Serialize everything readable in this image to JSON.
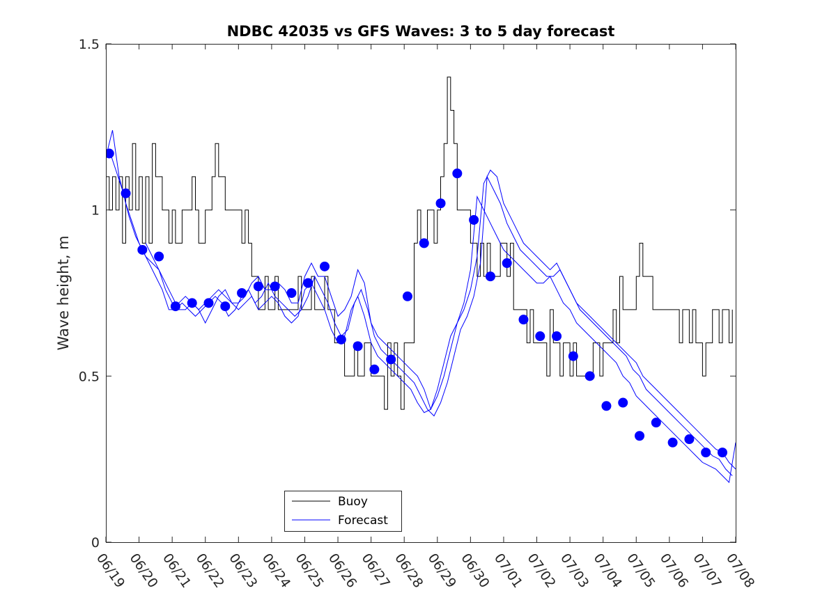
{
  "chart_data": {
    "type": "line",
    "title": "NDBC 42035 vs GFS Waves: 3 to 5 day forecast",
    "xlabel": "",
    "ylabel": "Wave height, m",
    "xlim": [
      0,
      19
    ],
    "ylim": [
      0,
      1.5
    ],
    "x_tick_labels": [
      "06/19",
      "06/20",
      "06/21",
      "06/22",
      "06/23",
      "06/24",
      "06/25",
      "06/26",
      "06/27",
      "06/28",
      "06/29",
      "06/30",
      "07/01",
      "07/02",
      "07/03",
      "07/04",
      "07/05",
      "07/06",
      "07/07",
      "07/08"
    ],
    "y_ticks": [
      0,
      0.5,
      1,
      1.5
    ],
    "y_tick_labels": [
      "0",
      "0.5",
      "1",
      "1.5"
    ],
    "grid": false,
    "legend_position": "bottom-center",
    "colors": {
      "buoy": "#000000",
      "forecast": "#0000ff",
      "axes": "#262626"
    },
    "legend": [
      {
        "label": "Buoy",
        "color": "#000000"
      },
      {
        "label": "Forecast",
        "color": "#0000ff"
      }
    ],
    "series": [
      {
        "name": "Buoy",
        "x": [
          0.0,
          0.1,
          0.2,
          0.3,
          0.4,
          0.5,
          0.6,
          0.7,
          0.8,
          0.9,
          1.0,
          1.1,
          1.2,
          1.3,
          1.4,
          1.5,
          1.6,
          1.7,
          1.8,
          1.9,
          2.0,
          2.1,
          2.2,
          2.3,
          2.4,
          2.5,
          2.6,
          2.7,
          2.8,
          2.9,
          3.0,
          3.1,
          3.2,
          3.3,
          3.4,
          3.5,
          3.6,
          3.7,
          3.8,
          3.9,
          4.0,
          4.1,
          4.2,
          4.3,
          4.4,
          4.5,
          4.6,
          4.7,
          4.8,
          4.9,
          5.0,
          5.1,
          5.2,
          5.3,
          5.4,
          5.5,
          5.6,
          5.7,
          5.8,
          5.9,
          6.0,
          6.1,
          6.2,
          6.3,
          6.4,
          6.5,
          6.6,
          6.7,
          6.8,
          6.9,
          7.0,
          7.1,
          7.2,
          7.3,
          7.4,
          7.5,
          7.6,
          7.7,
          7.8,
          7.9,
          8.0,
          8.1,
          8.2,
          8.3,
          8.4,
          8.5,
          8.6,
          8.7,
          8.8,
          8.9,
          9.0,
          9.1,
          9.2,
          9.3,
          9.4,
          9.5,
          9.6,
          9.7,
          9.8,
          9.9,
          10.0,
          10.1,
          10.2,
          10.3,
          10.4,
          10.5,
          10.6,
          10.7,
          10.8,
          10.9,
          11.0,
          11.1,
          11.2,
          11.3,
          11.4,
          11.5,
          11.6,
          11.7,
          11.8,
          11.9,
          12.0,
          12.1,
          12.2,
          12.3,
          12.4,
          12.5,
          12.6,
          12.7,
          12.8,
          12.9,
          13.0,
          13.1,
          13.2,
          13.3,
          13.4,
          13.5,
          13.6,
          13.7,
          13.8,
          13.9,
          14.0,
          14.1,
          14.2,
          14.3,
          14.4,
          14.5,
          14.6,
          14.7,
          14.8,
          14.9,
          15.0,
          15.1,
          15.2,
          15.3,
          15.4,
          15.5,
          15.6,
          15.7,
          15.8,
          15.9,
          16.0,
          16.1,
          16.2,
          16.3,
          16.4,
          16.5,
          16.6,
          16.7,
          16.8,
          16.9,
          17.0,
          17.1,
          17.2,
          17.3,
          17.4,
          17.5,
          17.6,
          17.7,
          17.8,
          17.9,
          18.0,
          18.1,
          18.2,
          18.3,
          18.4,
          18.5,
          18.6,
          18.7,
          18.8,
          18.9
        ],
        "values": [
          1.1,
          1.0,
          1.1,
          1.0,
          1.1,
          0.9,
          1.1,
          1.0,
          1.2,
          1.0,
          1.1,
          0.9,
          1.1,
          0.9,
          1.2,
          1.1,
          1.1,
          1.0,
          1.0,
          0.9,
          1.0,
          0.9,
          0.9,
          1.0,
          1.0,
          1.0,
          1.1,
          1.0,
          0.9,
          0.9,
          1.0,
          1.0,
          1.1,
          1.2,
          1.1,
          1.1,
          1.0,
          1.0,
          1.0,
          1.0,
          1.0,
          0.9,
          1.0,
          0.9,
          0.8,
          0.8,
          0.7,
          0.7,
          0.8,
          0.7,
          0.7,
          0.8,
          0.7,
          0.7,
          0.7,
          0.7,
          0.7,
          0.7,
          0.8,
          0.7,
          0.7,
          0.7,
          0.8,
          0.7,
          0.7,
          0.7,
          0.8,
          0.7,
          0.7,
          0.6,
          0.6,
          0.6,
          0.5,
          0.5,
          0.5,
          0.6,
          0.5,
          0.5,
          0.6,
          0.6,
          0.5,
          0.5,
          0.5,
          0.5,
          0.4,
          0.6,
          0.5,
          0.6,
          0.5,
          0.4,
          0.6,
          0.6,
          0.6,
          0.9,
          1.0,
          0.9,
          0.9,
          1.0,
          1.0,
          0.9,
          1.0,
          1.1,
          1.2,
          1.4,
          1.3,
          1.2,
          1.0,
          1.0,
          1.0,
          1.0,
          0.9,
          0.9,
          0.8,
          0.9,
          0.8,
          0.9,
          0.8,
          0.8,
          0.8,
          0.9,
          0.9,
          0.8,
          0.9,
          0.7,
          0.7,
          0.7,
          0.7,
          0.6,
          0.7,
          0.6,
          0.6,
          0.6,
          0.6,
          0.5,
          0.7,
          0.6,
          0.6,
          0.5,
          0.6,
          0.6,
          0.5,
          0.6,
          0.5,
          0.5,
          0.5,
          0.5,
          0.5,
          0.6,
          0.6,
          0.5,
          0.6,
          0.6,
          0.6,
          0.7,
          0.6,
          0.8,
          0.7,
          0.7,
          0.7,
          0.7,
          0.8,
          0.9,
          0.8,
          0.8,
          0.8,
          0.7,
          0.7,
          0.7,
          0.7,
          0.7,
          0.7,
          0.7,
          0.7,
          0.6,
          0.7,
          0.7,
          0.6,
          0.7,
          0.6,
          0.6,
          0.5,
          0.6,
          0.6,
          0.7,
          0.7,
          0.6,
          0.7,
          0.7,
          0.6,
          0.7
        ]
      },
      {
        "name": "Forecast",
        "x": [
          0.0,
          0.2,
          0.4,
          0.6,
          0.8,
          1.0,
          1.2,
          1.4,
          1.6,
          1.8,
          2.0,
          2.2,
          2.4,
          2.6,
          2.8,
          3.0,
          3.2,
          3.4,
          3.6,
          3.8,
          4.0,
          4.2,
          4.4,
          4.6,
          4.8,
          5.0,
          5.2,
          5.4,
          5.6,
          5.8,
          6.0,
          6.2,
          6.4,
          6.6,
          6.8,
          7.0,
          7.2,
          7.4,
          7.6,
          7.8,
          8.0,
          8.2,
          8.4,
          8.6,
          8.8,
          9.0,
          9.2,
          9.4,
          9.6,
          9.8,
          10.0,
          10.2,
          10.4,
          10.6,
          10.8,
          11.0,
          11.2,
          11.4,
          11.6,
          11.8,
          12.0,
          12.2,
          12.4,
          12.6,
          12.8,
          13.0,
          13.2,
          13.4,
          13.6,
          13.8,
          14.0,
          14.2,
          14.4,
          14.6,
          14.8,
          15.0,
          15.2,
          15.4,
          15.6,
          15.8,
          16.0,
          16.2,
          16.4,
          16.6,
          16.8,
          17.0,
          17.2,
          17.4,
          17.6,
          17.8,
          18.0,
          18.2,
          18.4,
          18.6,
          18.8,
          19.0
        ],
        "values": [
          1.16,
          1.24,
          1.1,
          1.02,
          0.96,
          0.9,
          0.86,
          0.84,
          0.82,
          0.76,
          0.72,
          0.72,
          0.74,
          0.72,
          0.7,
          0.72,
          0.74,
          0.76,
          0.74,
          0.72,
          0.72,
          0.74,
          0.78,
          0.8,
          0.76,
          0.76,
          0.78,
          0.76,
          0.72,
          0.72,
          0.8,
          0.84,
          0.8,
          0.8,
          0.74,
          0.68,
          0.7,
          0.74,
          0.82,
          0.78,
          0.66,
          0.62,
          0.6,
          0.58,
          0.56,
          0.54,
          0.52,
          0.5,
          0.46,
          0.4,
          0.44,
          0.5,
          0.58,
          0.66,
          0.7,
          0.76,
          0.86,
          1.08,
          1.12,
          1.1,
          1.02,
          0.98,
          0.94,
          0.9,
          0.88,
          0.86,
          0.84,
          0.82,
          0.84,
          0.8,
          0.76,
          0.72,
          0.7,
          0.68,
          0.66,
          0.64,
          0.62,
          0.6,
          0.58,
          0.56,
          0.54,
          0.5,
          0.48,
          0.46,
          0.44,
          0.42,
          0.4,
          0.38,
          0.36,
          0.34,
          0.32,
          0.3,
          0.28,
          0.27,
          0.24,
          0.22
        ]
      },
      {
        "name": "",
        "x": [
          0.1,
          0.3,
          0.5,
          0.7,
          0.9,
          1.1,
          1.3,
          1.5,
          1.7,
          1.9,
          2.1,
          2.3,
          2.5,
          2.7,
          2.9,
          3.1,
          3.3,
          3.5,
          3.7,
          3.9,
          4.1,
          4.3,
          4.5,
          4.7,
          4.9,
          5.1,
          5.3,
          5.5,
          5.7,
          5.9,
          6.1,
          6.3,
          6.5,
          6.7,
          6.9,
          7.1,
          7.3,
          7.5,
          7.7,
          7.9,
          8.1,
          8.3,
          8.5,
          8.7,
          8.9,
          9.1,
          9.3,
          9.5,
          9.7,
          9.9,
          10.1,
          10.3,
          10.5,
          10.7,
          10.9,
          11.1,
          11.3,
          11.5,
          11.7,
          11.9,
          12.1,
          12.3,
          12.5,
          12.7,
          12.9,
          13.1,
          13.3,
          13.5,
          13.7,
          13.9,
          14.1,
          14.3,
          14.5,
          14.7,
          14.9,
          15.1,
          15.3,
          15.5,
          15.7,
          15.9,
          16.1,
          16.3,
          16.5,
          16.7,
          16.9,
          17.1,
          17.3,
          17.5,
          17.7,
          17.9,
          18.1,
          18.3,
          18.5,
          18.7,
          18.9
        ],
        "values": [
          1.18,
          1.12,
          1.06,
          0.98,
          0.92,
          0.88,
          0.84,
          0.8,
          0.76,
          0.7,
          0.7,
          0.72,
          0.7,
          0.68,
          0.7,
          0.72,
          0.74,
          0.72,
          0.68,
          0.7,
          0.74,
          0.76,
          0.72,
          0.74,
          0.78,
          0.74,
          0.72,
          0.7,
          0.68,
          0.7,
          0.74,
          0.8,
          0.76,
          0.72,
          0.66,
          0.62,
          0.64,
          0.72,
          0.76,
          0.7,
          0.62,
          0.58,
          0.56,
          0.54,
          0.52,
          0.5,
          0.48,
          0.44,
          0.4,
          0.38,
          0.42,
          0.48,
          0.56,
          0.64,
          0.68,
          0.74,
          0.84,
          1.1,
          1.06,
          1.02,
          0.96,
          0.92,
          0.88,
          0.86,
          0.84,
          0.82,
          0.8,
          0.8,
          0.82,
          0.78,
          0.74,
          0.7,
          0.68,
          0.66,
          0.64,
          0.62,
          0.6,
          0.58,
          0.56,
          0.52,
          0.5,
          0.46,
          0.44,
          0.42,
          0.4,
          0.38,
          0.36,
          0.34,
          0.32,
          0.3,
          0.28,
          0.26,
          0.25,
          0.22,
          0.2
        ]
      },
      {
        "name": "",
        "x": [
          1.2,
          1.4,
          1.6,
          1.8,
          2.0,
          2.2,
          2.4,
          2.6,
          2.8,
          3.0,
          3.2,
          3.4,
          3.6,
          3.8,
          4.0,
          4.2,
          4.4,
          4.6,
          4.8,
          5.0,
          5.2,
          5.4,
          5.6,
          5.8,
          6.0,
          6.2,
          6.4,
          6.6,
          6.8,
          7.0,
          7.2,
          7.4,
          7.6,
          7.8,
          8.0,
          8.2,
          8.4,
          8.6,
          8.8,
          9.0,
          9.2,
          9.4,
          9.6,
          9.8,
          10.0,
          10.2,
          10.4,
          10.6,
          10.8,
          11.0,
          11.2,
          11.4,
          11.6,
          11.8,
          12.0,
          12.2,
          12.4,
          12.6,
          12.8,
          13.0,
          13.2,
          13.4,
          13.6,
          13.8,
          14.0,
          14.2,
          14.4,
          14.6,
          14.8,
          15.0,
          15.2,
          15.4,
          15.6,
          15.8,
          16.0,
          16.2,
          16.4,
          16.6,
          16.8,
          17.0,
          17.2,
          17.4,
          17.6,
          17.8,
          18.0,
          18.2,
          18.4,
          18.6,
          18.8,
          19.0
        ],
        "values": [
          0.9,
          0.86,
          0.82,
          0.78,
          0.74,
          0.7,
          0.7,
          0.72,
          0.7,
          0.66,
          0.7,
          0.74,
          0.76,
          0.72,
          0.7,
          0.72,
          0.74,
          0.7,
          0.72,
          0.74,
          0.72,
          0.68,
          0.66,
          0.68,
          0.76,
          0.78,
          0.74,
          0.7,
          0.64,
          0.6,
          0.62,
          0.7,
          0.74,
          0.68,
          0.6,
          0.56,
          0.54,
          0.52,
          0.5,
          0.48,
          0.46,
          0.42,
          0.39,
          0.4,
          0.46,
          0.54,
          0.62,
          0.66,
          0.72,
          0.82,
          1.04,
          1.0,
          0.96,
          0.92,
          0.88,
          0.86,
          0.84,
          0.82,
          0.8,
          0.78,
          0.78,
          0.8,
          0.76,
          0.72,
          0.7,
          0.66,
          0.64,
          0.62,
          0.6,
          0.58,
          0.56,
          0.54,
          0.5,
          0.48,
          0.44,
          0.42,
          0.4,
          0.38,
          0.36,
          0.34,
          0.32,
          0.3,
          0.28,
          0.26,
          0.24,
          0.23,
          0.22,
          0.2,
          0.18,
          0.3
        ]
      }
    ],
    "markers": {
      "name": "Forecast",
      "x": [
        0.1,
        0.6,
        1.1,
        1.6,
        2.1,
        2.6,
        3.1,
        3.6,
        4.1,
        4.6,
        5.1,
        5.6,
        6.1,
        6.6,
        7.1,
        7.6,
        8.1,
        8.6,
        9.1,
        9.6,
        10.1,
        10.6,
        11.1,
        11.6,
        12.1,
        12.6,
        13.1,
        13.6,
        14.1,
        14.6,
        15.1,
        15.6,
        16.1,
        16.6,
        17.1,
        17.6,
        18.1,
        18.6
      ],
      "values": [
        1.17,
        1.05,
        0.88,
        0.86,
        0.71,
        0.72,
        0.72,
        0.71,
        0.75,
        0.77,
        0.77,
        0.75,
        0.78,
        0.83,
        0.61,
        0.59,
        0.52,
        0.55,
        0.74,
        0.9,
        1.02,
        1.11,
        0.97,
        0.8,
        0.84,
        0.67,
        0.62,
        0.62,
        0.56,
        0.5,
        0.41,
        0.42,
        0.32,
        0.36,
        0.3,
        0.31,
        0.27,
        0.27
      ]
    }
  }
}
